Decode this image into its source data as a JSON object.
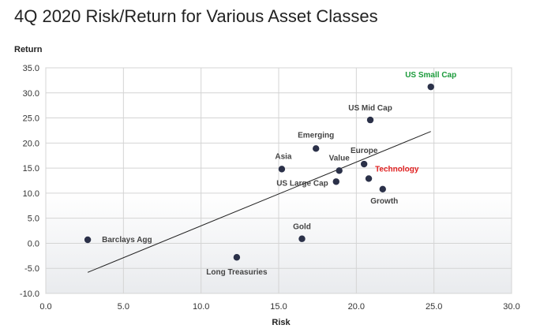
{
  "chart_data": {
    "type": "scatter",
    "title": "4Q 2020 Risk/Return for Various Asset Classes",
    "xlabel": "Risk",
    "ylabel": "Return",
    "xlim": [
      0,
      30
    ],
    "ylim": [
      -10,
      35
    ],
    "xticks": [
      0,
      5,
      10,
      15,
      20,
      25,
      30
    ],
    "xtick_labels": [
      "0.0",
      "5.0",
      "10.0",
      "15.0",
      "20.0",
      "25.0",
      "30.0"
    ],
    "yticks": [
      -10,
      -5,
      0,
      5,
      10,
      15,
      20,
      25,
      30,
      35
    ],
    "ytick_labels": [
      "-10.0",
      "-5.0",
      "0.0",
      "5.0",
      "10.0",
      "15.0",
      "20.0",
      "25.0",
      "30.0",
      "35.0"
    ],
    "grid": true,
    "point_color": "#2b3149",
    "points": [
      {
        "label": "Barclays Agg",
        "x": 2.7,
        "y": 0.7,
        "color": "#444444"
      },
      {
        "label": "Long Treasuries",
        "x": 12.3,
        "y": -2.8,
        "color": "#444444"
      },
      {
        "label": "Gold",
        "x": 16.5,
        "y": 0.9,
        "color": "#444444"
      },
      {
        "label": "Asia",
        "x": 15.2,
        "y": 14.8,
        "color": "#444444"
      },
      {
        "label": "Emerging",
        "x": 17.4,
        "y": 18.9,
        "color": "#444444"
      },
      {
        "label": "US Large Cap",
        "x": 18.7,
        "y": 12.3,
        "color": "#444444"
      },
      {
        "label": "Value",
        "x": 18.9,
        "y": 14.5,
        "color": "#444444"
      },
      {
        "label": "Europe",
        "x": 20.5,
        "y": 15.8,
        "color": "#444444"
      },
      {
        "label": "Technology",
        "x": 20.8,
        "y": 12.9,
        "color": "#e02020"
      },
      {
        "label": "Growth",
        "x": 21.7,
        "y": 10.8,
        "color": "#444444"
      },
      {
        "label": "US Mid Cap",
        "x": 20.9,
        "y": 24.6,
        "color": "#444444"
      },
      {
        "label": "US Small Cap",
        "x": 24.8,
        "y": 31.2,
        "color": "#1a9a3a"
      }
    ],
    "trendline": {
      "x": [
        2.7,
        24.8
      ],
      "y": [
        -5.8,
        22.3
      ]
    }
  }
}
